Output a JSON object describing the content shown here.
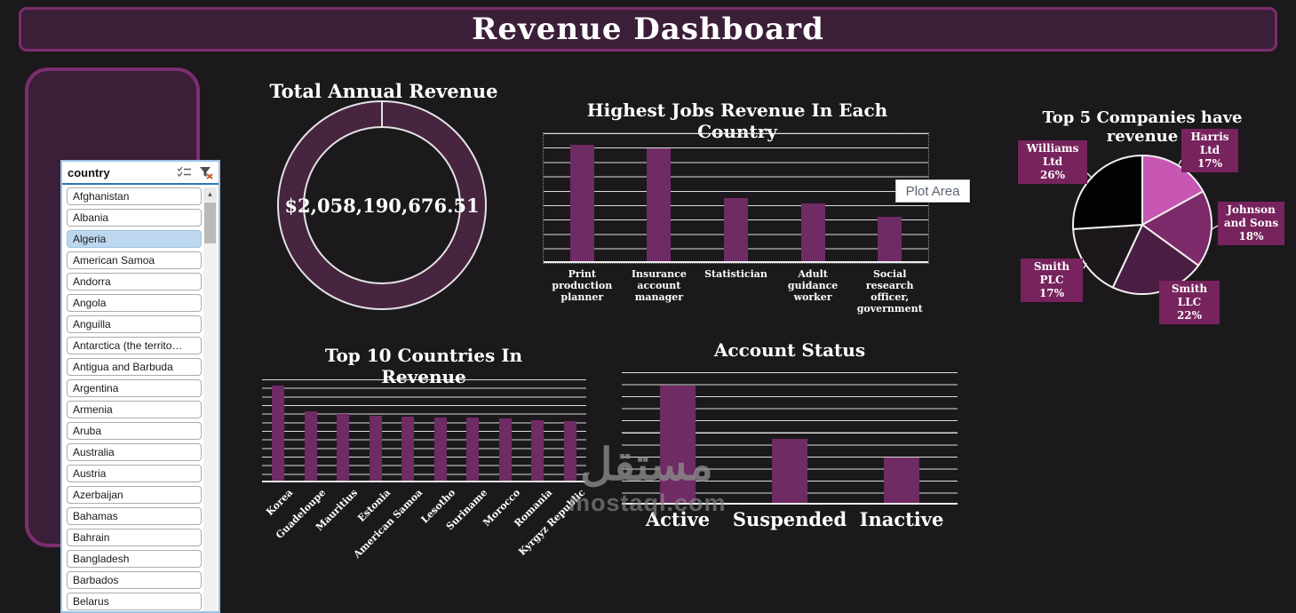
{
  "app": {
    "title": "Revenue Dashboard"
  },
  "slicer": {
    "header": "country",
    "icons": [
      "multi-select-icon",
      "clear-filter-icon"
    ],
    "selected": "Algeria",
    "items": [
      "Afghanistan",
      "Albania",
      "Algeria",
      "American Samoa",
      "Andorra",
      "Angola",
      "Anguilla",
      "Antarctica (the territo…",
      "Antigua and Barbuda",
      "Argentina",
      "Armenia",
      "Aruba",
      "Australia",
      "Austria",
      "Azerbaijan",
      "Bahamas",
      "Bahrain",
      "Bangladesh",
      "Barbados",
      "Belarus"
    ],
    "scroll_up_glyph": "▲"
  },
  "tooltip": {
    "label": "Plot Area"
  },
  "watermark": {
    "arabic": "مستقل",
    "latin": "mostaql.com"
  },
  "colors": {
    "background": "#1c191c",
    "banner_fill": "#3b1e38",
    "banner_border": "#7c2e6e",
    "bar_purple": "#6f2b63",
    "donut_ring": "#47243f",
    "pie_label_box": "#77235d",
    "slicer_selected": "#bdd7ee",
    "slicer_header_rule": "#2e75b6",
    "gridline": "#ffffff",
    "watermark_gray": "#8a8a8a"
  },
  "chart_data": [
    {
      "id": "total_revenue",
      "type": "pie",
      "subtype": "donut",
      "title": "Total Annual Revenue",
      "center_label": "$2,058,190,676.51",
      "series": [
        {
          "name": "Total Annual Revenue",
          "value": 100
        }
      ],
      "ring_color": "#47243f"
    },
    {
      "id": "jobs_revenue",
      "type": "bar",
      "title": "Highest Jobs Revenue In Each Country",
      "categories": [
        "Print production planner",
        "Insurance account manager",
        "Statistician",
        "Adult guidance worker",
        "Social research officer, government"
      ],
      "values_pct_of_max_scale": [
        91,
        88,
        49,
        45,
        35
      ],
      "axis_labels_shown": false,
      "grid": true,
      "bar_color": "#6f2b63"
    },
    {
      "id": "top5_companies",
      "type": "pie",
      "title": "Top 5 Companies have revenue",
      "slices": [
        {
          "label": "Harris Ltd",
          "value": 17,
          "pct_label": "17%",
          "color": "#c757b2"
        },
        {
          "label": "Johnson and Sons",
          "value": 18,
          "pct_label": "18%",
          "color": "#7d2a6b"
        },
        {
          "label": "Smith LLC",
          "value": 22,
          "pct_label": "22%",
          "color": "#4b1e44"
        },
        {
          "label": "Smith PLC",
          "value": 17,
          "pct_label": "17%",
          "color": "#1b171b"
        },
        {
          "label": "Williams Ltd",
          "value": 26,
          "pct_label": "26%",
          "color": "#020202"
        }
      ],
      "legend_position": "callout-labels"
    },
    {
      "id": "top10_countries",
      "type": "bar",
      "title": "Top 10 Countries In Revenue",
      "categories": [
        "Korea",
        "Guadeloupe",
        "Mauritius",
        "Estonia",
        "American Samoa",
        "Lesotho",
        "Suriname",
        "Morocco",
        "Romania",
        "Kyrgyz Republic"
      ],
      "values_pct_of_max_scale": [
        94,
        68,
        66,
        64,
        63,
        62,
        62,
        61,
        60,
        59
      ],
      "axis_labels_shown": false,
      "grid": true,
      "bar_color": "#6f2b63"
    },
    {
      "id": "account_status",
      "type": "bar",
      "title": "Account Status",
      "categories": [
        "Active",
        "Suspended",
        "Inactive"
      ],
      "values_pct_of_max_scale": [
        90,
        49,
        35
      ],
      "axis_labels_shown": false,
      "grid": true,
      "bar_color": "#6f2b63"
    }
  ]
}
